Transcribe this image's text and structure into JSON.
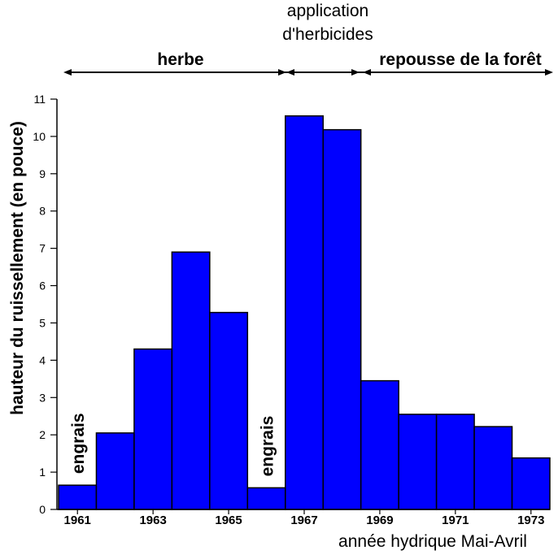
{
  "chart_data": {
    "type": "bar",
    "categories": [
      "1961",
      "1962",
      "1963",
      "1964",
      "1965",
      "1966",
      "1967",
      "1968",
      "1969",
      "1970",
      "1971",
      "1972",
      "1973"
    ],
    "values": [
      0.65,
      2.05,
      4.3,
      6.9,
      5.28,
      0.58,
      10.55,
      10.18,
      3.45,
      2.55,
      2.55,
      2.22,
      1.38
    ],
    "x_tick_labels": [
      "1961",
      "1963",
      "1965",
      "1967",
      "1969",
      "1971",
      "1973"
    ],
    "y_ticks": [
      "0",
      "1",
      "2",
      "3",
      "4",
      "5",
      "6",
      "7",
      "8",
      "9",
      "10",
      "11"
    ],
    "ylim": [
      0,
      11
    ],
    "xlabel": "année hydrique Mai-Avril",
    "ylabel": "hauteur du ruissellement (en pouce)",
    "bar_color": "#0000ff",
    "periods": [
      {
        "label": "herbe",
        "from": "1961",
        "to": "1966"
      },
      {
        "label": "application d'herbicides",
        "line1": "application",
        "line2": "d'herbicides",
        "from": "1967",
        "to": "1968"
      },
      {
        "label": "repousse de la forêt",
        "from": "1969",
        "to": "1973"
      }
    ],
    "annotations": [
      {
        "text": "engrais",
        "category": "1961"
      },
      {
        "text": "engrais",
        "category": "1966"
      }
    ]
  }
}
